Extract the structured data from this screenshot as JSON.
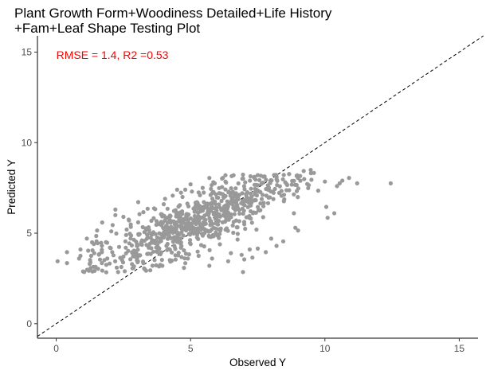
{
  "chart_data": {
    "type": "scatter",
    "title_lines": [
      "Plant Growth Form+Woodiness Detailed+Life History",
      "+Fam+Leaf Shape Testing Plot"
    ],
    "xlabel": "Observed Y",
    "ylabel": "Predicted Y",
    "xlim": [
      -0.7,
      15.7
    ],
    "ylim": [
      -0.8,
      15.9
    ],
    "x_ticks": [
      0,
      5,
      10,
      15
    ],
    "y_ticks": [
      0,
      5,
      10,
      15
    ],
    "annotation": {
      "text": "RMSE = 1.4, R2 =0.53",
      "color": "#ff0000",
      "x": 0,
      "y": 14.85
    },
    "reference_line": {
      "slope": 1,
      "intercept": 0,
      "style": "dashed"
    },
    "point_color": "#999999",
    "grid": false,
    "n_points": 820,
    "points": [
      [
        0.05,
        3.45
      ],
      [
        0.4,
        3.95
      ],
      [
        0.4,
        3.35
      ],
      [
        0.85,
        3.6
      ],
      [
        0.9,
        3.75
      ],
      [
        0.9,
        4.1
      ],
      [
        1.3,
        3.75
      ],
      [
        1.35,
        4.05
      ],
      [
        1.4,
        4.4
      ],
      [
        1.5,
        4.55
      ],
      [
        1.6,
        3.85
      ],
      [
        1.7,
        3.35
      ],
      [
        1.7,
        3.95
      ],
      [
        1.85,
        4.5
      ],
      [
        1.9,
        3.6
      ],
      [
        2.0,
        4.2
      ],
      [
        2.05,
        5.1
      ],
      [
        2.1,
        5.45
      ],
      [
        2.2,
        6.0
      ],
      [
        2.2,
        6.3
      ],
      [
        2.25,
        3.1
      ],
      [
        2.3,
        2.85
      ],
      [
        2.5,
        5.9
      ],
      [
        2.6,
        4.9
      ],
      [
        2.7,
        5.75
      ],
      [
        3.0,
        3.5
      ],
      [
        3.05,
        5.6
      ],
      [
        3.1,
        6.05
      ],
      [
        3.3,
        3.0
      ],
      [
        3.4,
        6.35
      ],
      [
        3.5,
        2.95
      ],
      [
        3.9,
        6.05
      ],
      [
        3.95,
        3.2
      ],
      [
        4.0,
        6.6
      ],
      [
        4.05,
        6.9
      ],
      [
        4.1,
        4.3
      ],
      [
        4.5,
        7.4
      ],
      [
        4.6,
        6.55
      ],
      [
        4.7,
        7.0
      ],
      [
        4.75,
        4.05
      ],
      [
        4.8,
        7.4
      ],
      [
        4.9,
        3.6
      ],
      [
        5.0,
        7.7
      ],
      [
        5.05,
        7.3
      ],
      [
        5.3,
        7.25
      ],
      [
        5.3,
        3.75
      ],
      [
        5.45,
        7.5
      ],
      [
        5.7,
        8.05
      ],
      [
        5.7,
        3.2
      ],
      [
        5.8,
        3.6
      ],
      [
        5.9,
        7.75
      ],
      [
        6.2,
        8.05
      ],
      [
        6.3,
        8.2
      ],
      [
        6.3,
        7.85
      ],
      [
        6.4,
        3.45
      ],
      [
        6.5,
        3.9
      ],
      [
        6.6,
        8.2
      ],
      [
        6.75,
        4.65
      ],
      [
        6.9,
        3.8
      ],
      [
        6.95,
        2.85
      ],
      [
        7.0,
        3.55
      ],
      [
        7.2,
        4.1
      ],
      [
        7.3,
        3.65
      ],
      [
        7.5,
        4.15
      ],
      [
        7.8,
        3.95
      ],
      [
        8.0,
        4.7
      ],
      [
        8.2,
        4.3
      ],
      [
        8.45,
        4.55
      ],
      [
        8.9,
        5.3
      ],
      [
        9.0,
        5.15
      ],
      [
        9.4,
        7.65
      ],
      [
        9.5,
        7.95
      ],
      [
        9.75,
        7.35
      ],
      [
        10.0,
        7.85
      ],
      [
        10.05,
        6.45
      ],
      [
        10.1,
        5.85
      ],
      [
        10.35,
        6.1
      ],
      [
        10.45,
        7.6
      ],
      [
        10.55,
        7.75
      ],
      [
        10.65,
        7.9
      ],
      [
        10.9,
        8.05
      ],
      [
        11.2,
        7.75
      ],
      [
        12.45,
        7.75
      ]
    ]
  }
}
